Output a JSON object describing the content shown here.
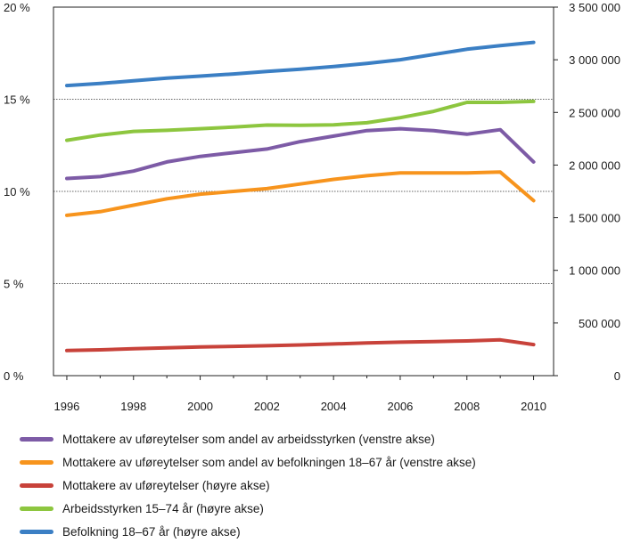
{
  "chart_data": {
    "type": "line",
    "title": "",
    "xlabel": "",
    "ylabel": "",
    "x_ticks": [
      "1996",
      "1998",
      "2000",
      "2002",
      "2004",
      "2006",
      "2008",
      "2010"
    ],
    "xlim": [
      1995.6,
      2010.6
    ],
    "left_axis": {
      "ylim": [
        0,
        20
      ],
      "ticks": [
        {
          "value": 0,
          "label": "0 %"
        },
        {
          "value": 5,
          "label": "5 %"
        },
        {
          "value": 10,
          "label": "10 %"
        },
        {
          "value": 15,
          "label": "15 %"
        },
        {
          "value": 20,
          "label": "20 %"
        }
      ]
    },
    "right_axis": {
      "ylim": [
        0,
        3500000
      ],
      "ticks": [
        {
          "value": 0,
          "label": "0"
        },
        {
          "value": 500000,
          "label": "500 000"
        },
        {
          "value": 1000000,
          "label": "1 000 000"
        },
        {
          "value": 1500000,
          "label": "1 500 000"
        },
        {
          "value": 2000000,
          "label": "2 000 000"
        },
        {
          "value": 2500000,
          "label": "2 500 000"
        },
        {
          "value": 3000000,
          "label": "3 000 000"
        },
        {
          "value": 3500000,
          "label": "3 500 000"
        }
      ]
    },
    "gridlines_at_left": [
      5,
      10,
      15
    ],
    "series": [
      {
        "name": "Mottakere av uføreytelser som andel av arbeidsstyrken (venstre akse)",
        "axis": "left",
        "color": "#7d5ba6",
        "x": [
          1996,
          1997,
          1998,
          1999,
          2000,
          2001,
          2002,
          2003,
          2004,
          2005,
          2006,
          2007,
          2008,
          2009,
          2010
        ],
        "values": [
          10.7,
          10.8,
          11.1,
          11.6,
          11.9,
          12.1,
          12.3,
          12.7,
          13.0,
          13.3,
          13.4,
          13.3,
          13.1,
          13.35,
          11.6
        ]
      },
      {
        "name": "Mottakere av uføreytelser som andel av befolkningen 18–67 år (venstre akse)",
        "axis": "left",
        "color": "#f7941d",
        "x": [
          1996,
          1997,
          1998,
          1999,
          2000,
          2001,
          2002,
          2003,
          2004,
          2005,
          2006,
          2007,
          2008,
          2009,
          2010
        ],
        "values": [
          8.7,
          8.9,
          9.25,
          9.6,
          9.85,
          10.0,
          10.15,
          10.4,
          10.65,
          10.85,
          11.0,
          11.0,
          11.0,
          11.05,
          9.5
        ]
      },
      {
        "name": "Mottakere av uføreytelser (høyre akse)",
        "axis": "right",
        "color": "#c8423a",
        "x": [
          1996,
          1997,
          1998,
          1999,
          2000,
          2001,
          2002,
          2003,
          2004,
          2005,
          2006,
          2007,
          2008,
          2009,
          2010
        ],
        "values": [
          238000,
          245000,
          255000,
          264000,
          272000,
          278000,
          284000,
          292000,
          301000,
          310000,
          318000,
          324000,
          330000,
          340000,
          295000
        ]
      },
      {
        "name": "Arbeidsstyrken 15–74 år (høyre akse)",
        "axis": "right",
        "color": "#8dc63f",
        "x": [
          1996,
          1997,
          1998,
          1999,
          2000,
          2001,
          2002,
          2003,
          2004,
          2005,
          2006,
          2007,
          2008,
          2009,
          2010
        ],
        "values": [
          2235000,
          2285000,
          2320000,
          2330000,
          2345000,
          2360000,
          2380000,
          2378000,
          2382000,
          2402000,
          2450000,
          2510000,
          2595000,
          2595000,
          2605000
        ]
      },
      {
        "name": "Befolkning 18–67 år (høyre akse)",
        "axis": "right",
        "color": "#3b7fc4",
        "x": [
          1996,
          1997,
          1998,
          1999,
          2000,
          2001,
          2002,
          2003,
          2004,
          2005,
          2006,
          2007,
          2008,
          2009,
          2010
        ],
        "values": [
          2755000,
          2775000,
          2800000,
          2825000,
          2845000,
          2865000,
          2890000,
          2910000,
          2935000,
          2965000,
          3000000,
          3050000,
          3100000,
          3135000,
          3165000
        ]
      }
    ]
  }
}
